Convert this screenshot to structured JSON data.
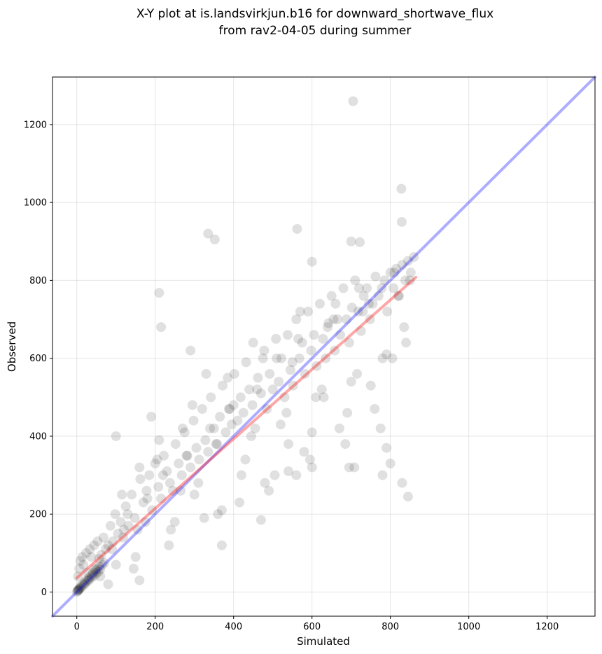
{
  "chart_data": {
    "type": "scatter",
    "title": "X-Y plot at is.landsvirkjun.b16 for downward_shortwave_flux",
    "subtitle": "from rav2-04-05 during summer",
    "xlabel": "Simulated",
    "ylabel": "Observed",
    "xlim": [
      -62,
      1322
    ],
    "ylim": [
      -62,
      1322
    ],
    "xticks": [
      0,
      200,
      400,
      600,
      800,
      1000,
      1200
    ],
    "yticks": [
      0,
      200,
      400,
      600,
      800,
      1000,
      1200
    ],
    "grid": true,
    "legend": "none",
    "series": [
      {
        "kind": "points",
        "color": "#000000",
        "opacity": 0.12,
        "x": [
          0,
          2,
          3,
          4,
          5,
          6,
          8,
          10,
          12,
          15,
          18,
          20,
          22,
          25,
          28,
          30,
          32,
          35,
          38,
          40,
          42,
          45,
          48,
          50,
          52,
          55,
          58,
          60,
          65,
          70,
          3,
          6,
          9,
          14,
          17,
          24,
          27,
          33,
          37,
          44,
          47,
          53,
          57,
          62,
          68,
          74,
          80,
          86,
          92,
          98,
          105,
          112,
          118,
          125,
          132,
          140,
          148,
          155,
          162,
          170,
          178,
          185,
          192,
          200,
          208,
          215,
          222,
          230,
          238,
          245,
          252,
          260,
          268,
          275,
          282,
          290,
          298,
          305,
          312,
          320,
          328,
          335,
          342,
          350,
          358,
          365,
          372,
          380,
          388,
          395,
          402,
          410,
          418,
          425,
          432,
          440,
          448,
          455,
          462,
          470,
          478,
          485,
          492,
          500,
          508,
          515,
          522,
          530,
          538,
          545,
          552,
          560,
          568,
          575,
          582,
          590,
          598,
          605,
          612,
          620,
          628,
          635,
          642,
          650,
          658,
          665,
          672,
          680,
          688,
          695,
          702,
          710,
          718,
          725,
          732,
          740,
          748,
          755,
          762,
          770,
          778,
          785,
          792,
          800,
          808,
          815,
          822,
          830,
          838,
          845,
          852,
          860,
          100,
          130,
          160,
          190,
          210,
          240,
          270,
          300,
          330,
          360,
          390,
          420,
          450,
          480,
          510,
          540,
          570,
          600,
          630,
          660,
          690,
          720,
          750,
          780,
          810,
          840,
          120,
          150,
          180,
          220,
          250,
          280,
          310,
          340,
          370,
          400,
          430,
          460,
          490,
          520,
          550,
          580,
          610,
          640,
          670,
          700,
          730,
          760,
          790,
          820,
          850,
          90,
          115,
          145,
          175,
          205,
          235,
          265,
          295,
          325,
          355,
          385,
          415,
          445,
          475,
          505,
          535,
          565,
          595,
          625,
          655,
          685,
          715,
          745,
          775,
          805,
          835,
          705,
          828,
          829,
          335,
          352,
          562,
          600,
          700,
          722,
          210,
          215,
          290,
          370,
          470,
          540,
          560,
          600,
          695,
          708,
          780,
          790,
          800,
          830,
          845,
          160,
          100,
          80,
          60
        ],
        "y": [
          0,
          3,
          5,
          6,
          4,
          8,
          10,
          15,
          12,
          20,
          18,
          25,
          22,
          30,
          28,
          35,
          32,
          40,
          38,
          45,
          50,
          42,
          55,
          48,
          60,
          52,
          65,
          58,
          70,
          75,
          40,
          60,
          80,
          90,
          70,
          100,
          50,
          110,
          90,
          120,
          60,
          130,
          85,
          95,
          140,
          110,
          120,
          170,
          130,
          200,
          150,
          180,
          140,
          220,
          170,
          250,
          190,
          160,
          290,
          230,
          260,
          300,
          210,
          330,
          270,
          240,
          350,
          310,
          280,
          260,
          380,
          330,
          300,
          410,
          350,
          320,
          440,
          370,
          340,
          470,
          390,
          360,
          500,
          420,
          380,
          450,
          530,
          410,
          470,
          430,
          560,
          440,
          500,
          460,
          590,
          520,
          480,
          420,
          550,
          510,
          620,
          470,
          560,
          520,
          650,
          540,
          600,
          500,
          660,
          570,
          530,
          700,
          600,
          640,
          560,
          720,
          620,
          660,
          580,
          740,
          650,
          600,
          690,
          760,
          620,
          700,
          660,
          780,
          700,
          640,
          730,
          800,
          720,
          670,
          760,
          780,
          700,
          740,
          810,
          760,
          780,
          800,
          720,
          820,
          780,
          830,
          760,
          840,
          800,
          850,
          820,
          860,
          70,
          200,
          320,
          450,
          390,
          160,
          420,
          250,
          560,
          200,
          470,
          300,
          640,
          280,
          600,
          380,
          720,
          410,
          500,
          740,
          460,
          780,
          530,
          600,
          820,
          640,
          160,
          90,
          240,
          300,
          180,
          350,
          280,
          420,
          210,
          480,
          340,
          520,
          260,
          430,
          590,
          360,
          500,
          680,
          420,
          540,
          720,
          470,
          610,
          760,
          800,
          110,
          250,
          60,
          180,
          340,
          120,
          260,
          480,
          190,
          380,
          550,
          230,
          400,
          600,
          300,
          460,
          650,
          340,
          520,
          700,
          380,
          560,
          740,
          420,
          600,
          680,
          1260,
          1035,
          950,
          920,
          905,
          932,
          848,
          900,
          898,
          768,
          680,
          620,
          120,
          185,
          310,
          300,
          320,
          320,
          320,
          300,
          370,
          330,
          280,
          245,
          30,
          400,
          20,
          40
        ]
      },
      {
        "kind": "line",
        "name": "",
        "color": "#0000ff",
        "opacity": 0.32,
        "x": [
          -62,
          1322
        ],
        "y": [
          -62,
          1322
        ]
      },
      {
        "kind": "line",
        "name": "",
        "color": "#ff0000",
        "opacity": 0.35,
        "x": [
          0,
          865
        ],
        "y": [
          36,
          808
        ]
      }
    ]
  }
}
